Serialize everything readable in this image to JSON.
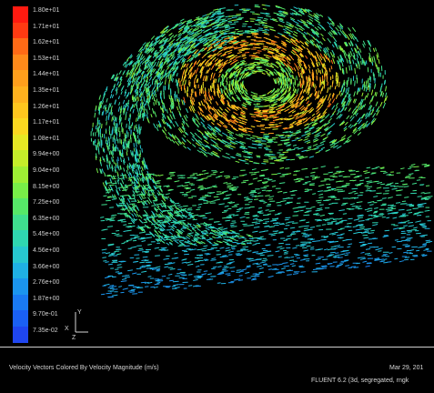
{
  "colormap": {
    "labels": [
      "1.80e+01",
      "1.71e+01",
      "1.62e+01",
      "1.53e+01",
      "1.44e+01",
      "1.35e+01",
      "1.26e+01",
      "1.17e+01",
      "1.08e+01",
      "9.94e+00",
      "9.04e+00",
      "8.15e+00",
      "7.25e+00",
      "6.35e+00",
      "5.45e+00",
      "4.56e+00",
      "3.66e+00",
      "2.76e+00",
      "1.87e+00",
      "9.70e-01",
      "7.35e-02"
    ],
    "colors": [
      "#ff1a10",
      "#ff3a12",
      "#ff6a16",
      "#ff8a1a",
      "#ff9f1c",
      "#ffb21e",
      "#ffc61e",
      "#fbd820",
      "#e6e824",
      "#c4ee2a",
      "#9eef34",
      "#78ee48",
      "#56e868",
      "#3fdf8e",
      "#2fd6b0",
      "#27c7cf",
      "#1fb0e4",
      "#1b95ee",
      "#1a7af2",
      "#1a60f4",
      "#1f46f0"
    ]
  },
  "axes": {
    "x": "X",
    "y": "Y",
    "z": "Z"
  },
  "caption": "Velocity Vectors Colored By Velocity Magnitude (m/s)",
  "date": "Mar 29, 201",
  "solver": "FLUENT 6.2 (3d, segregated, rngk"
}
